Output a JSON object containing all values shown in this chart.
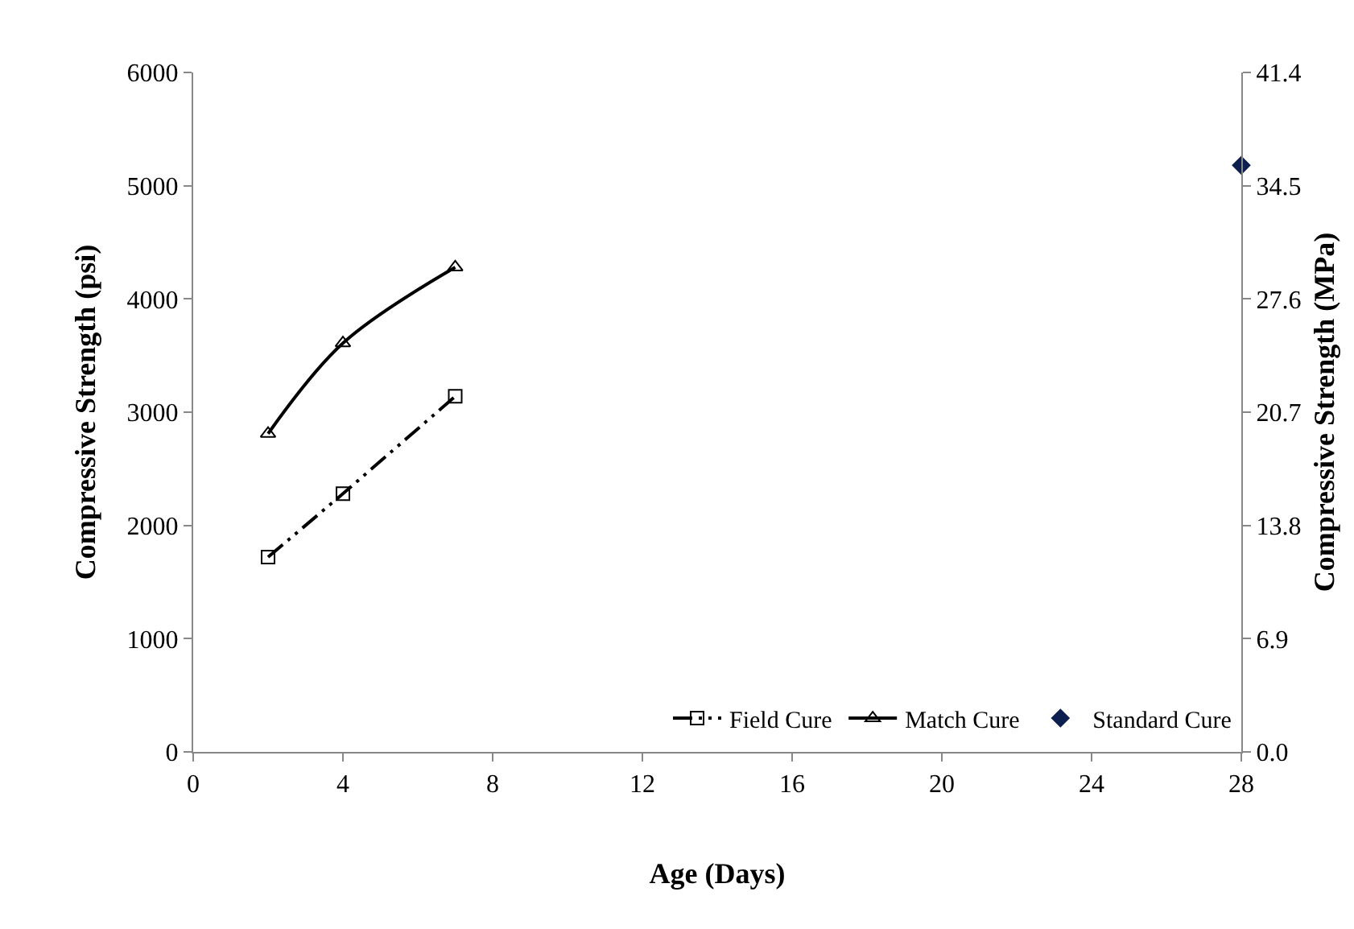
{
  "chart_data": {
    "type": "line",
    "xlabel": "Age (Days)",
    "ylabel": "Compressive Strength (psi)",
    "y2label": "Compressive Strength (MPa)",
    "xlim": [
      0,
      28
    ],
    "xticks": [
      0,
      4,
      8,
      12,
      16,
      20,
      24,
      28
    ],
    "ylim": [
      0,
      6000
    ],
    "yticks": [
      0,
      1000,
      2000,
      3000,
      4000,
      5000,
      6000
    ],
    "y2lim": [
      0,
      41.4
    ],
    "y2ticks": [
      {
        "value": 0,
        "label": "0.0"
      },
      {
        "value": 6.9,
        "label": "6.9"
      },
      {
        "value": 13.8,
        "label": "13.8"
      },
      {
        "value": 20.7,
        "label": "20.7"
      },
      {
        "value": 27.6,
        "label": "27.6"
      },
      {
        "value": 34.5,
        "label": "34.5"
      },
      {
        "value": 41.4,
        "label": "41.4"
      }
    ],
    "grid": false,
    "legend": "bottom right",
    "series": [
      {
        "name": "Field Cure",
        "color": "#000000",
        "x": [
          2,
          4,
          7
        ],
        "values": [
          1720,
          2280,
          3140
        ],
        "marker": "square",
        "line_style": "dashed"
      },
      {
        "name": "Match Cure",
        "color": "#000000",
        "x": [
          2,
          4,
          7
        ],
        "values": [
          2810,
          3610,
          4280
        ],
        "marker": "triangle",
        "line_style": "solid"
      },
      {
        "name": "Standard Cure",
        "type": "scatter",
        "color": "#0d1f4e",
        "x": [
          28
        ],
        "values": [
          5180
        ],
        "marker": "diamond"
      }
    ]
  }
}
